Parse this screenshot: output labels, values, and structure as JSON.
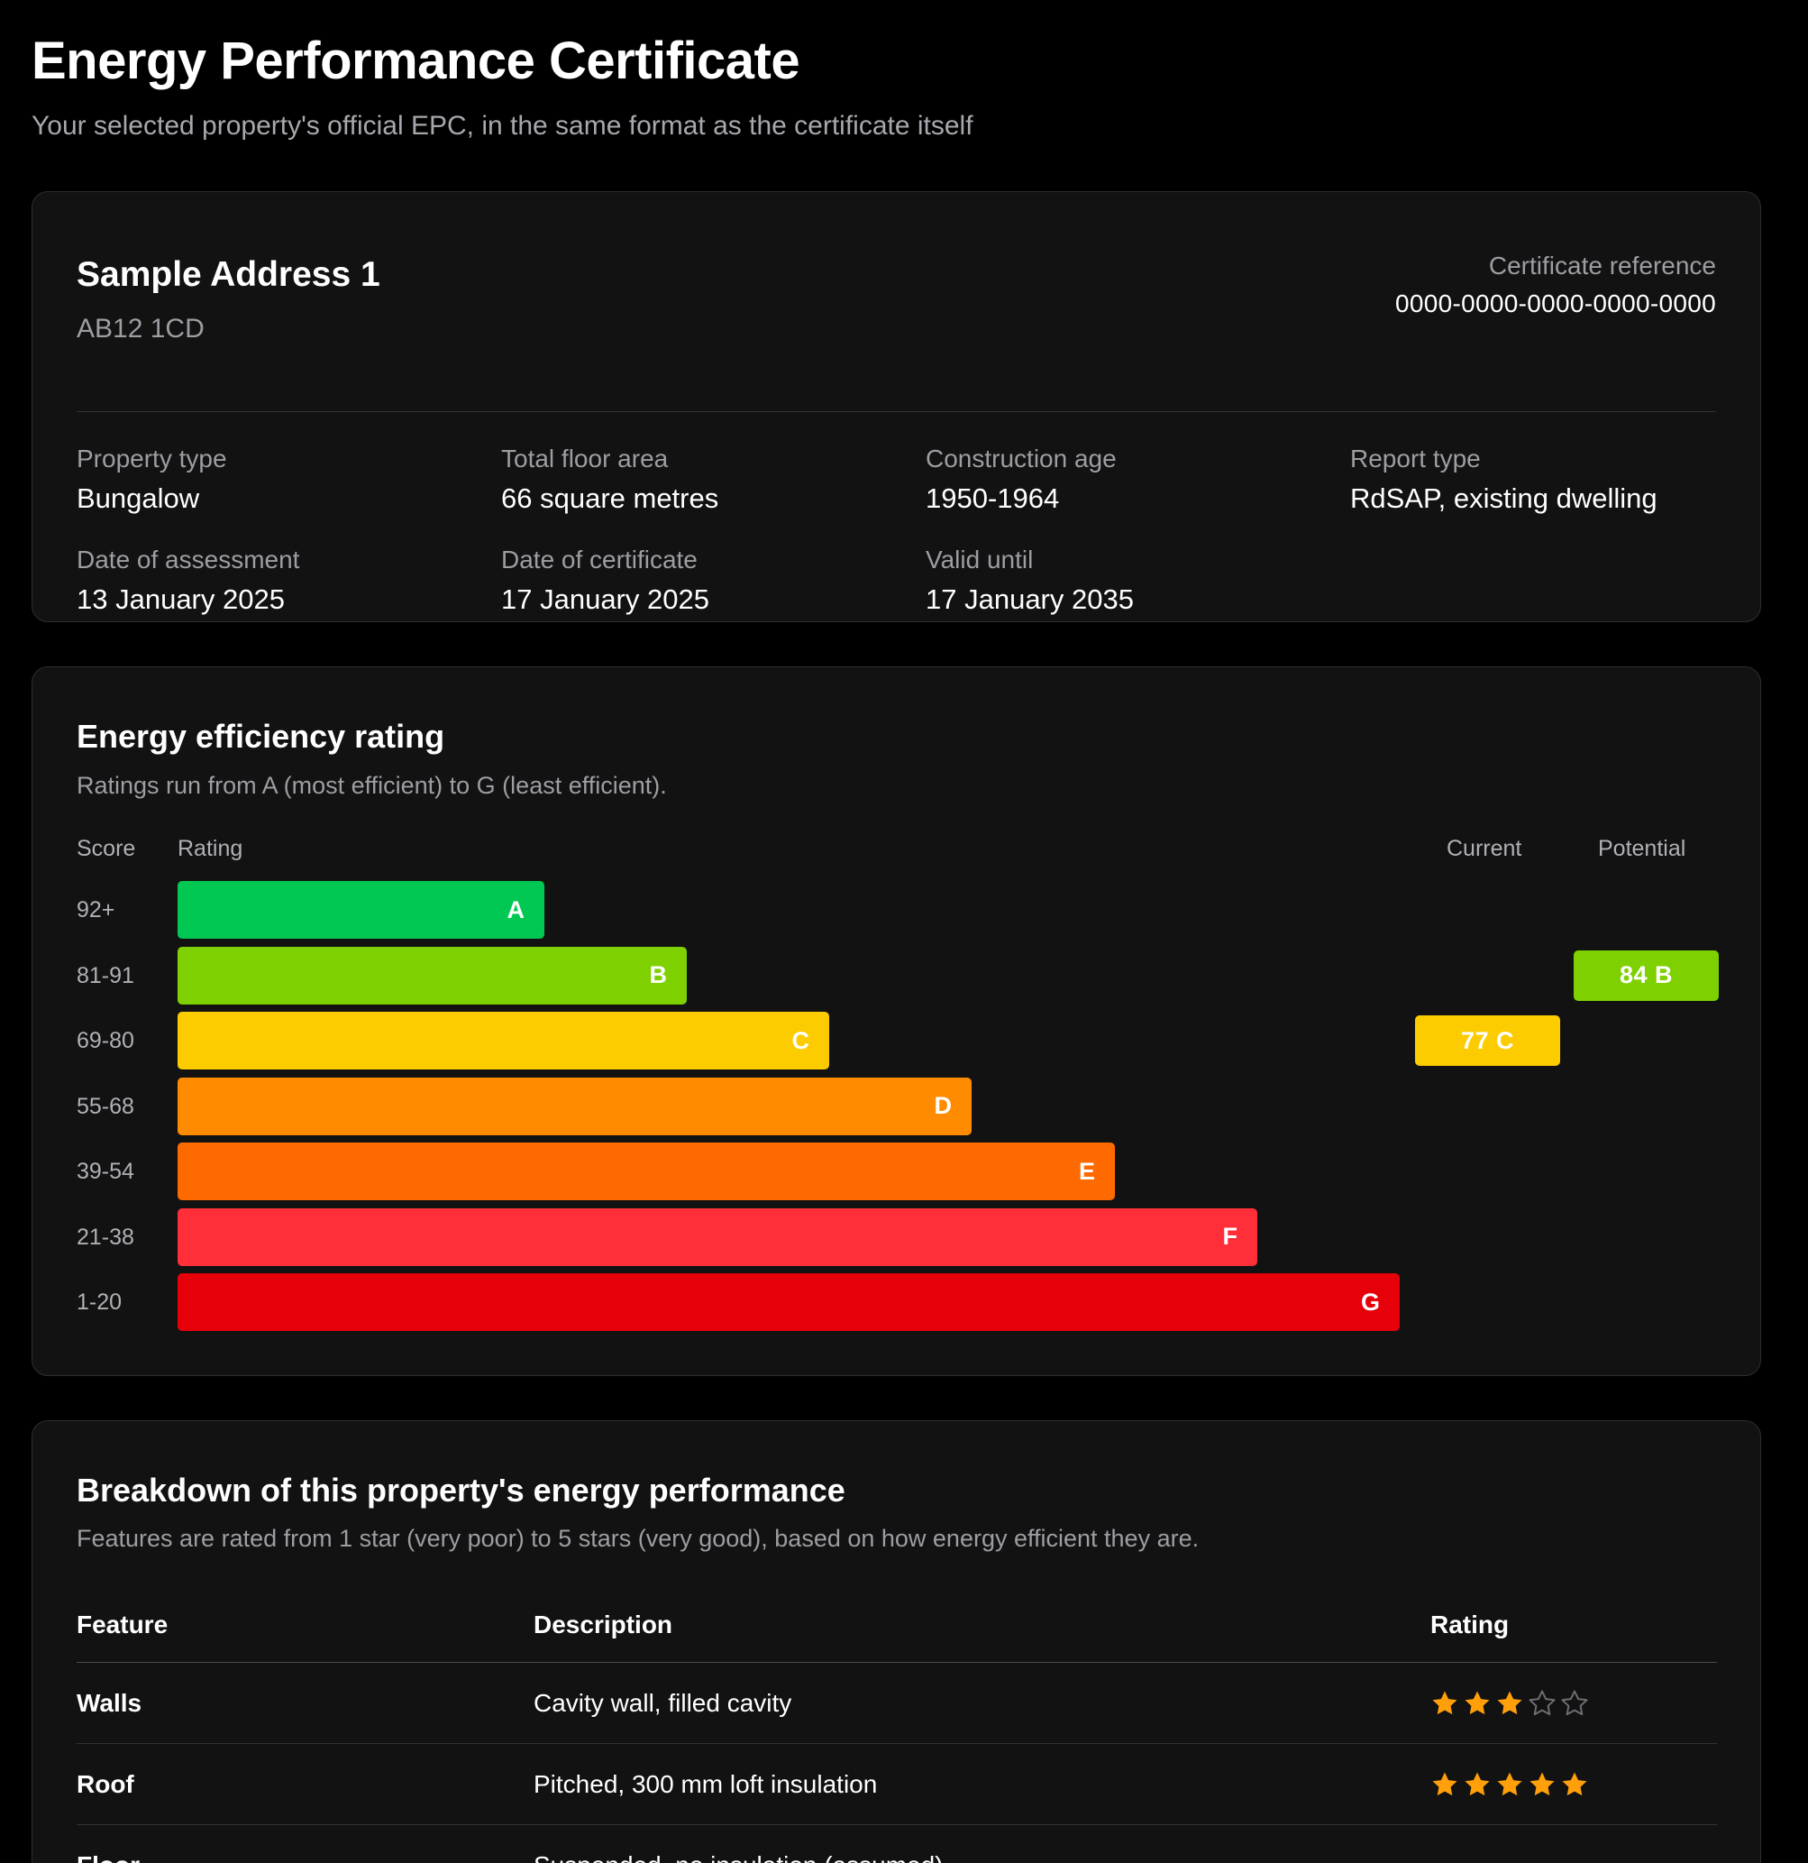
{
  "page": {
    "title": "Energy Performance Certificate",
    "subtitle": "Your selected property's official EPC, in the same format as the certificate itself"
  },
  "property": {
    "address": "Sample Address 1",
    "postcode": "AB12 1CD",
    "certificate_reference_label": "Certificate reference",
    "certificate_reference": "0000-0000-0000-0000-0000",
    "facts": [
      {
        "label": "Property type",
        "value": "Bungalow"
      },
      {
        "label": "Total floor area",
        "value": "66 square metres"
      },
      {
        "label": "Construction age",
        "value": "1950-1964"
      },
      {
        "label": "Report type",
        "value": "RdSAP, existing dwelling"
      },
      {
        "label": "Date of assessment",
        "value": "13 January 2025"
      },
      {
        "label": "Date of certificate",
        "value": "17 January 2025"
      },
      {
        "label": "Valid until",
        "value": "17 January 2035"
      }
    ]
  },
  "rating": {
    "title": "Energy efficiency rating",
    "subtitle": "Ratings run from A (most efficient) to G (least efficient).",
    "col_score": "Score",
    "col_rating": "Rating",
    "col_current": "Current",
    "col_potential": "Potential",
    "bands": [
      {
        "score": "92+",
        "letter": "A",
        "color": "#00c853"
      },
      {
        "score": "81-91",
        "letter": "B",
        "color": "#7ed000"
      },
      {
        "score": "69-80",
        "letter": "C",
        "color": "#fccb00"
      },
      {
        "score": "55-68",
        "letter": "D",
        "color": "#ff8c00"
      },
      {
        "score": "39-54",
        "letter": "E",
        "color": "#ff6a00"
      },
      {
        "score": "21-38",
        "letter": "F",
        "color": "#fe2f38"
      },
      {
        "score": "1-20",
        "letter": "G",
        "color": "#e6000a"
      }
    ],
    "current": {
      "label": "77 C",
      "band": "C",
      "color": "#fccb00"
    },
    "potential": {
      "label": "84 B",
      "band": "B",
      "color": "#7ed000"
    }
  },
  "breakdown": {
    "title": "Breakdown of this property's energy performance",
    "subtitle": "Features are rated from 1 star (very poor) to 5 stars (very good), based on how energy efficient they are.",
    "headers": {
      "feature": "Feature",
      "description": "Description",
      "rating": "Rating"
    },
    "rows": [
      {
        "feature": "Walls",
        "description": "Cavity wall, filled cavity",
        "stars": 3
      },
      {
        "feature": "Roof",
        "description": "Pitched, 300 mm loft insulation",
        "stars": 5
      },
      {
        "feature": "Floor",
        "description": "Suspended, no insulation (assumed)",
        "stars": null,
        "rating_text": "—"
      }
    ],
    "star_color": "#ff9f0a",
    "star_empty_color": "#6e6e73"
  }
}
